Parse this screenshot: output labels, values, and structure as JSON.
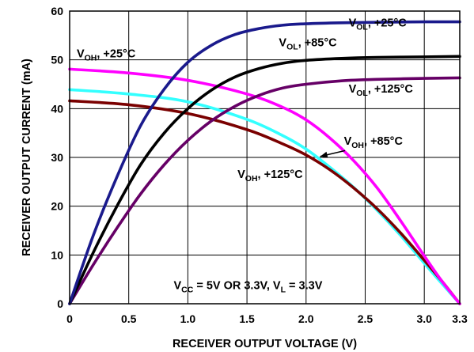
{
  "chart_data": {
    "type": "line",
    "xlabel": "RECEIVER OUTPUT VOLTAGE (V)",
    "ylabel": "RECEIVER OUTPUT CURRENT (mA)",
    "xlim": [
      0,
      3.3
    ],
    "ylim": [
      0,
      60
    ],
    "x_ticks": [
      "0",
      "0.5",
      "1.0",
      "1.5",
      "2.0",
      "2.5",
      "3.0",
      "3.3"
    ],
    "y_ticks": [
      "0",
      "10",
      "20",
      "30",
      "40",
      "50",
      "60"
    ],
    "grid": true,
    "series": [
      {
        "key": "vol25",
        "color": "#1a1a8c",
        "main": "V",
        "sub": "OL",
        "suffix": ", +25°C",
        "x": [
          0,
          0.2,
          0.4,
          0.6,
          0.8,
          1.0,
          1.2,
          1.4,
          1.6,
          1.8,
          2.0,
          2.3,
          2.6,
          3.0,
          3.3
        ],
        "y": [
          0,
          14,
          26,
          36.5,
          44,
          49.5,
          53,
          55.2,
          56.4,
          57.1,
          57.4,
          57.6,
          57.7,
          57.8,
          57.8
        ]
      },
      {
        "key": "vol85",
        "color": "#000000",
        "main": "V",
        "sub": "OL",
        "suffix": ", +85°C",
        "x": [
          0,
          0.2,
          0.4,
          0.6,
          0.8,
          1.0,
          1.2,
          1.4,
          1.6,
          1.8,
          2.0,
          2.3,
          2.6,
          3.0,
          3.3
        ],
        "y": [
          0,
          10.5,
          20,
          28.5,
          35,
          40,
          43.8,
          46.5,
          48.2,
          49.3,
          49.9,
          50.3,
          50.5,
          50.6,
          50.7
        ]
      },
      {
        "key": "vol125",
        "color": "#660066",
        "main": "V",
        "sub": "OL",
        "suffix": ", +125°C",
        "x": [
          0,
          0.2,
          0.4,
          0.6,
          0.8,
          1.0,
          1.2,
          1.4,
          1.6,
          1.8,
          2.0,
          2.3,
          2.6,
          3.0,
          3.3
        ],
        "y": [
          0,
          8,
          15.5,
          22.5,
          28.5,
          33.5,
          37.5,
          40.5,
          42.7,
          44.2,
          45.0,
          45.7,
          46.0,
          46.2,
          46.3
        ]
      },
      {
        "key": "voh25",
        "color": "#ff00ff",
        "main": "V",
        "sub": "OH",
        "suffix": ", +25°C",
        "x": [
          0,
          0.5,
          1.0,
          1.5,
          1.8,
          2.0,
          2.2,
          2.4,
          2.6,
          2.8,
          3.0,
          3.15,
          3.3
        ],
        "y": [
          48.1,
          47.3,
          45.8,
          43.0,
          40.3,
          37.7,
          34.0,
          29.4,
          23.8,
          17.0,
          9.8,
          4.6,
          0
        ]
      },
      {
        "key": "voh85",
        "color": "#33ffff",
        "main": "V",
        "sub": "OH",
        "suffix": ", +85°C",
        "x": [
          0,
          0.5,
          1.0,
          1.5,
          1.8,
          2.0,
          2.2,
          2.4,
          2.6,
          2.8,
          3.0,
          3.15,
          3.3
        ],
        "y": [
          43.9,
          43.0,
          41.4,
          37.8,
          34.5,
          31.7,
          28.0,
          23.9,
          19.2,
          14.0,
          8.3,
          4.1,
          0
        ]
      },
      {
        "key": "voh125",
        "color": "#7a0000",
        "main": "V",
        "sub": "OH",
        "suffix": ", +125°C",
        "x": [
          0,
          0.5,
          1.0,
          1.5,
          1.8,
          2.0,
          2.2,
          2.4,
          2.6,
          2.8,
          3.0,
          3.15,
          3.3
        ],
        "y": [
          41.6,
          40.8,
          39.0,
          35.7,
          32.8,
          30.5,
          27.5,
          23.8,
          19.5,
          14.5,
          8.9,
          4.6,
          0
        ]
      }
    ],
    "annotations": [
      {
        "key": "vol25",
        "main": "V",
        "sub": "OL",
        "suffix": ", +25°C",
        "x": 2.36,
        "y": 56.8,
        "anchor": "start"
      },
      {
        "key": "vol85",
        "main": "V",
        "sub": "OL",
        "suffix": ", +85°C",
        "x": 1.77,
        "y": 52.8,
        "anchor": "start"
      },
      {
        "key": "vol125",
        "main": "V",
        "sub": "OL",
        "suffix": ", +125°C",
        "x": 2.36,
        "y": 43.3,
        "anchor": "start"
      },
      {
        "key": "voh25",
        "main": "V",
        "sub": "OH",
        "suffix": ", +25°C",
        "x": 0.06,
        "y": 50.5,
        "anchor": "start"
      },
      {
        "key": "voh85",
        "main": "V",
        "sub": "OH",
        "suffix": ", +85°C",
        "x": 2.32,
        "y": 32.6,
        "anchor": "start"
      },
      {
        "key": "voh125",
        "main": "V",
        "sub": "OH",
        "suffix": ", +125°C",
        "x": 1.42,
        "y": 25.8,
        "anchor": "start"
      }
    ],
    "conditions": {
      "main1": "V",
      "sub1": "CC",
      "mid": " = 5V OR 3.3V, V",
      "sub2": "L",
      "tail": " = 3.3V",
      "x": 0.88,
      "y": 3.0
    },
    "arrow": {
      "from": [
        2.33,
        31.4
      ],
      "to": [
        2.12,
        30.2
      ]
    }
  }
}
